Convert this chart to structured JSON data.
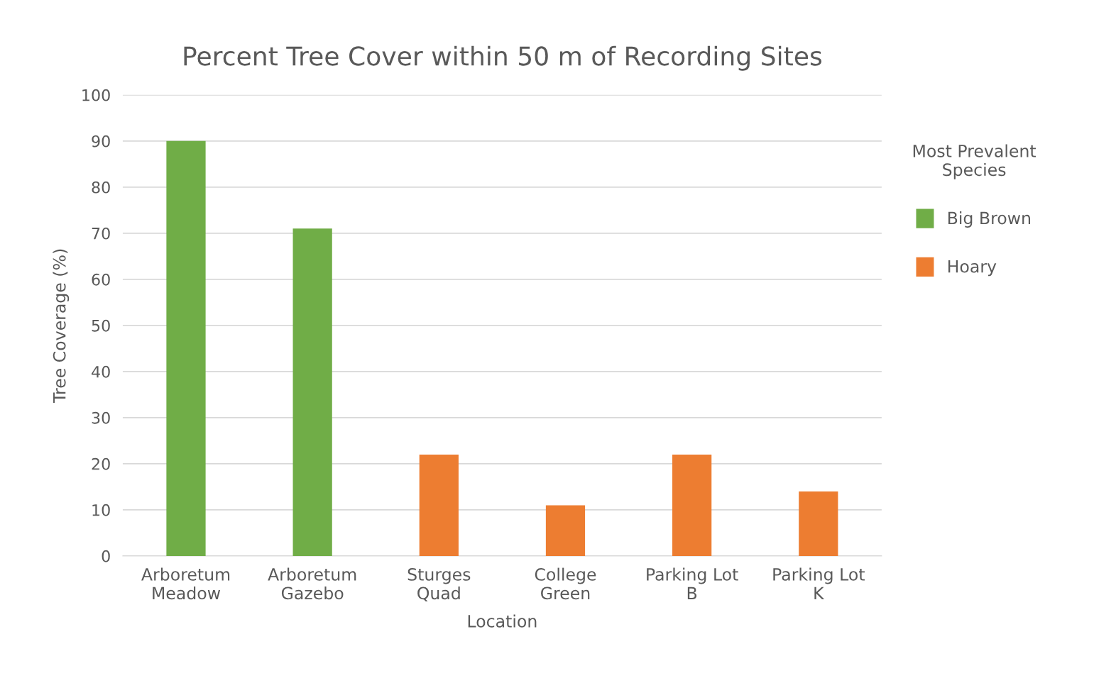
{
  "chart_data": {
    "type": "bar",
    "title": "Percent Tree Cover within 50 m of Recording Sites",
    "xlabel": "Location",
    "ylabel": "Tree Coverage (%)",
    "legend_title": "Most Prevalent\nSpecies",
    "categories": [
      "Arboretum\nMeadow",
      "Arboretum\nGazebo",
      "Sturges\nQuad",
      "College\nGreen",
      "Parking Lot\nB",
      "Parking Lot\nK"
    ],
    "series": [
      {
        "name": "Big Brown",
        "color": "#70ad47",
        "values": [
          90,
          71,
          null,
          null,
          null,
          null
        ]
      },
      {
        "name": "Hoary",
        "color": "#ed7d31",
        "values": [
          null,
          null,
          22,
          11,
          22,
          14
        ]
      }
    ],
    "ylim": [
      0,
      100
    ],
    "yticks": [
      0,
      10,
      20,
      30,
      40,
      50,
      60,
      70,
      80,
      90,
      100
    ],
    "grid": "y",
    "legend": "right"
  }
}
